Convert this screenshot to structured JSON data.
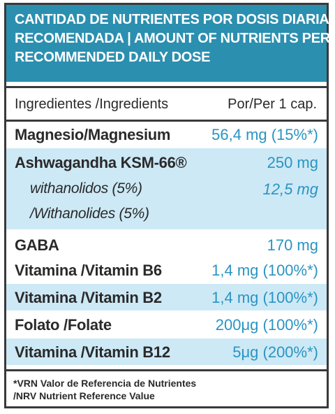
{
  "header": {
    "line1": "CANTIDAD DE NUTRIENTES POR DOSIS DIARIA",
    "line2": "RECOMENDADA | AMOUNT OF NUTRIENTS PER",
    "line3": "RECOMMENDED DAILY DOSE"
  },
  "columns": {
    "ingredients": "Ingredientes /Ingredients",
    "per_cap": "Por/Per 1 cap."
  },
  "rows": [
    {
      "name": "Magnesio/Magnesium",
      "value": "56,4 mg (15%*)"
    },
    {
      "name": "Ashwagandha KSM-66®",
      "value": "250 mg",
      "sub1": "withanolidos (5%)",
      "sub1_value": "12,5 mg",
      "sub2": "/Withanolides (5%)"
    },
    {
      "name": "GABA",
      "value": "170 mg"
    },
    {
      "name": "Vitamina /Vitamin B6",
      "value": "1,4 mg (100%*)"
    },
    {
      "name": "Vitamina /Vitamin B2",
      "value": "1,4 mg (100%*)"
    },
    {
      "name": "Folato /Folate",
      "value": "200μg (100%*)"
    },
    {
      "name": "Vitamina /Vitamin B12",
      "value": "5μg (200%*)"
    }
  ],
  "footnote": {
    "line1": "*VRN Valor de Referencia de Nutrientes",
    "line2": "/NRV Nutrient Reference Value"
  },
  "colors": {
    "header_bg": "#2b8fb0",
    "row_shade": "#cde9f6",
    "value_text": "#2a94c2",
    "border": "#3a3a3a"
  }
}
